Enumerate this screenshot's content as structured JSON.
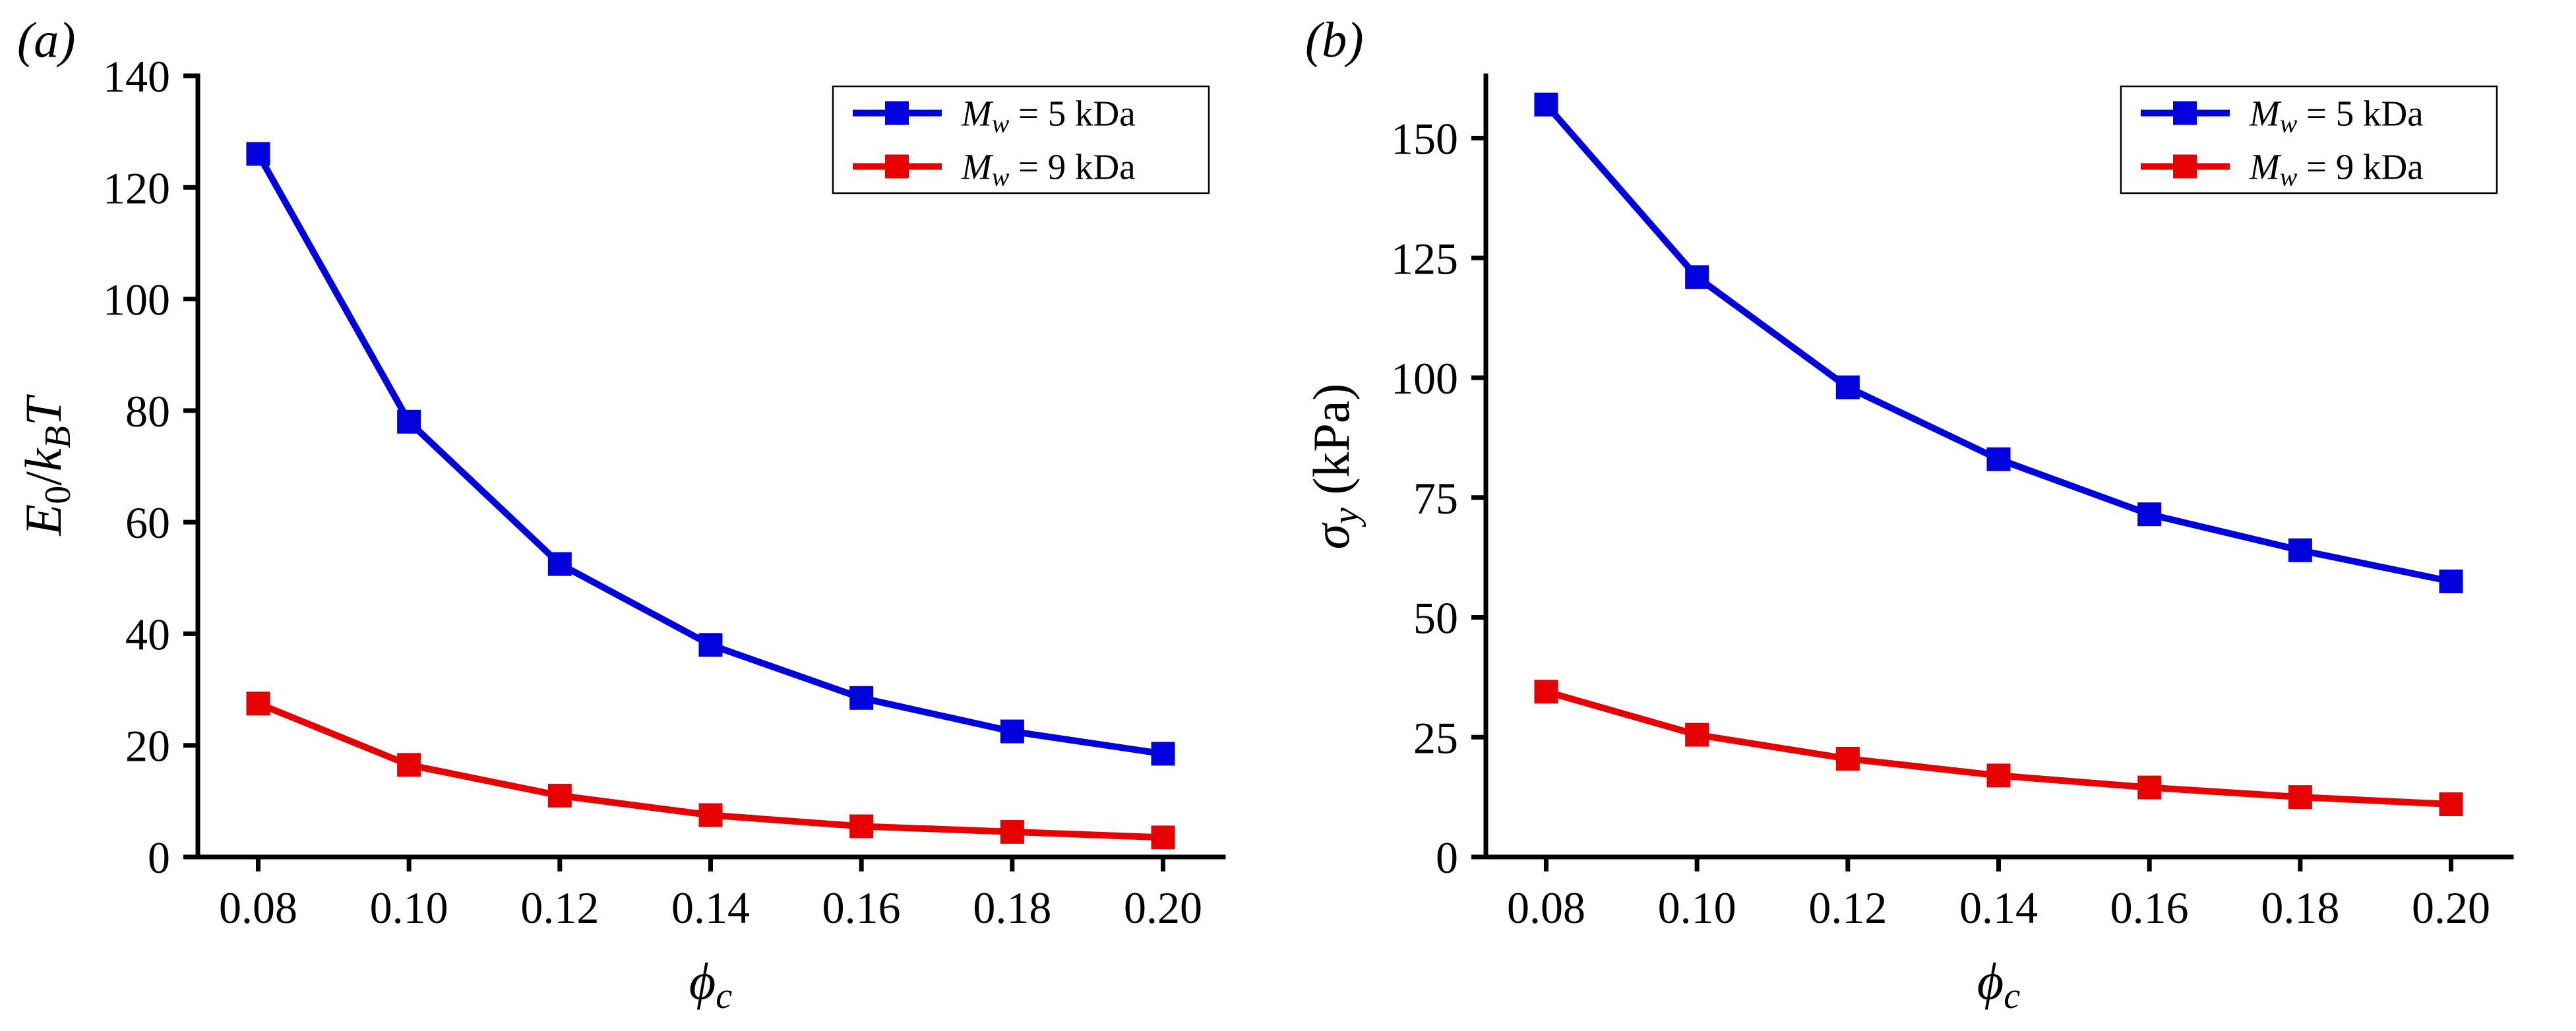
{
  "page": {
    "background": "#ffffff",
    "series_colors": {
      "mw5": "#0000dd",
      "mw9": "#e60000"
    }
  },
  "chart_data": [
    {
      "type": "line",
      "panel_label": "(a)",
      "x": [
        0.08,
        0.1,
        0.12,
        0.14,
        0.16,
        0.18,
        0.2
      ],
      "series": [
        {
          "name": "Mw = 5 kDa",
          "color": "#0000dd",
          "marker": "square",
          "values": [
            126,
            78,
            52.5,
            38,
            28.5,
            22.5,
            18.5
          ],
          "label_parts": [
            {
              "text": "M",
              "italic": true
            },
            {
              "text": "w",
              "italic": true,
              "sub": true
            },
            {
              "text": " = 5 kDa"
            }
          ]
        },
        {
          "name": "Mw = 9 kDa",
          "color": "#e60000",
          "marker": "square",
          "values": [
            27.5,
            16.5,
            11,
            7.5,
            5.5,
            4.5,
            3.5
          ],
          "label_parts": [
            {
              "text": "M",
              "italic": true
            },
            {
              "text": "w",
              "italic": true,
              "sub": true
            },
            {
              "text": " = 9 kDa"
            }
          ]
        }
      ],
      "xlabel": "phi_c",
      "xlabel_parts": [
        {
          "text": "ϕ",
          "italic": true
        },
        {
          "text": "c",
          "italic": true,
          "sub": true
        }
      ],
      "ylabel": "E0/kBT",
      "ylabel_parts": [
        {
          "text": "E",
          "italic": true
        },
        {
          "text": "0",
          "sub": true
        },
        {
          "text": "/"
        },
        {
          "text": "k",
          "italic": true
        },
        {
          "text": "B",
          "italic": true,
          "sub": true
        },
        {
          "text": "T",
          "italic": true
        }
      ],
      "xlim": [
        0.072,
        0.208
      ],
      "ylim": [
        0,
        140
      ],
      "xticks": [
        0.08,
        0.1,
        0.12,
        0.14,
        0.16,
        0.18,
        0.2
      ],
      "yticks": [
        0,
        20,
        40,
        60,
        80,
        100,
        120,
        140
      ],
      "grid": false,
      "legend_position": "top-right"
    },
    {
      "type": "line",
      "panel_label": "(b)",
      "x": [
        0.08,
        0.1,
        0.12,
        0.14,
        0.16,
        0.18,
        0.2
      ],
      "series": [
        {
          "name": "Mw = 5 kDa",
          "color": "#0000dd",
          "marker": "square",
          "values": [
            157,
            121,
            98,
            83,
            71.5,
            64,
            57.5
          ],
          "label_parts": [
            {
              "text": "M",
              "italic": true
            },
            {
              "text": "w",
              "italic": true,
              "sub": true
            },
            {
              "text": " = 5 kDa"
            }
          ]
        },
        {
          "name": "Mw = 9 kDa",
          "color": "#e60000",
          "marker": "square",
          "values": [
            34.5,
            25.5,
            20.5,
            17,
            14.5,
            12.5,
            11
          ],
          "label_parts": [
            {
              "text": "M",
              "italic": true
            },
            {
              "text": "w",
              "italic": true,
              "sub": true
            },
            {
              "text": " = 9 kDa"
            }
          ]
        }
      ],
      "xlabel": "phi_c",
      "xlabel_parts": [
        {
          "text": "ϕ",
          "italic": true
        },
        {
          "text": "c",
          "italic": true,
          "sub": true
        }
      ],
      "ylabel": "sigma_y (kPa)",
      "ylabel_parts": [
        {
          "text": "σ",
          "italic": true
        },
        {
          "text": "y",
          "italic": true,
          "sub": true
        },
        {
          "text": " (kPa)"
        }
      ],
      "xlim": [
        0.072,
        0.208
      ],
      "ylim": [
        0,
        163
      ],
      "xticks": [
        0.08,
        0.1,
        0.12,
        0.14,
        0.16,
        0.18,
        0.2
      ],
      "yticks": [
        0,
        25,
        50,
        75,
        100,
        125,
        150
      ],
      "grid": false,
      "legend_position": "top-right"
    }
  ]
}
